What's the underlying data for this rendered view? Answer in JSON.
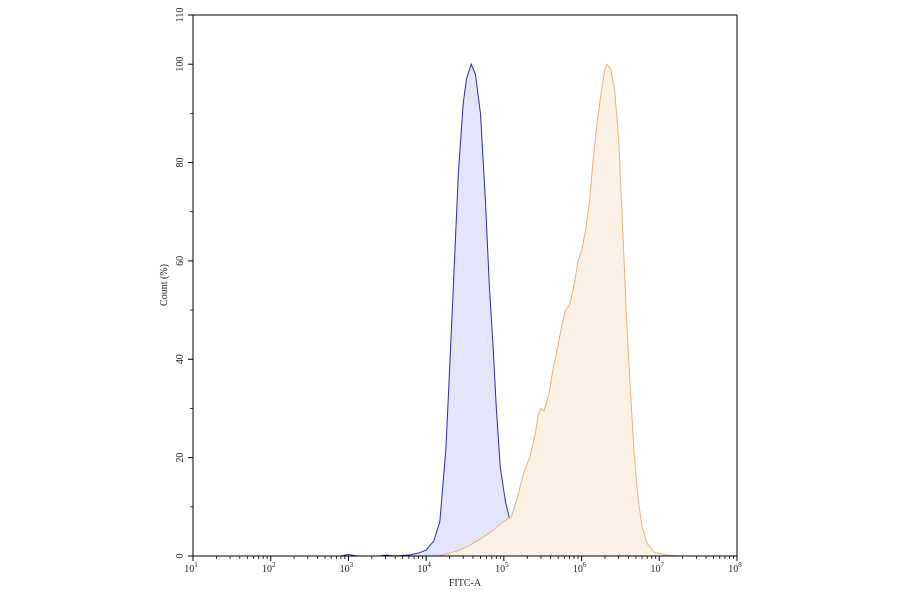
{
  "chart_data": {
    "type": "area",
    "xlabel": "FITC-A",
    "ylabel": "Count (%)",
    "xscale": "log",
    "xlim": [
      10,
      100000000
    ],
    "ylim": [
      0,
      110
    ],
    "x_ticks": [
      {
        "value": 10,
        "base": "10",
        "exp": "1"
      },
      {
        "value": 100,
        "base": "10",
        "exp": "2"
      },
      {
        "value": 1000,
        "base": "10",
        "exp": "3"
      },
      {
        "value": 10000,
        "base": "10",
        "exp": "4"
      },
      {
        "value": 100000,
        "base": "10",
        "exp": "5"
      },
      {
        "value": 1000000,
        "base": "10",
        "exp": "6"
      },
      {
        "value": 10000000,
        "base": "10",
        "exp": "7"
      },
      {
        "value": 100000000,
        "base": "10",
        "exp": "8"
      }
    ],
    "y_ticks": [
      0,
      20,
      40,
      60,
      80,
      100,
      110
    ],
    "grid": false,
    "legend": "none",
    "series": [
      {
        "stroke": "#2b2ba8",
        "fill": "#e4e5fb",
        "points": [
          [
            800,
            0
          ],
          [
            1000,
            0.3
          ],
          [
            1300,
            0
          ],
          [
            2500,
            0
          ],
          [
            3000,
            0.2
          ],
          [
            4000,
            0
          ],
          [
            6000,
            0.2
          ],
          [
            8000,
            0.6
          ],
          [
            10000,
            1.2
          ],
          [
            11000,
            2
          ],
          [
            12500,
            3
          ],
          [
            15000,
            7
          ],
          [
            18000,
            22
          ],
          [
            22000,
            52
          ],
          [
            26000,
            78
          ],
          [
            30000,
            92
          ],
          [
            33000,
            97
          ],
          [
            38000,
            100
          ],
          [
            43000,
            98
          ],
          [
            50000,
            90
          ],
          [
            58000,
            72
          ],
          [
            65000,
            55
          ],
          [
            73000,
            42
          ],
          [
            80000,
            30
          ],
          [
            90000,
            18
          ],
          [
            105000,
            11
          ],
          [
            125000,
            6
          ],
          [
            150000,
            3
          ],
          [
            190000,
            1.5
          ],
          [
            250000,
            0.7
          ],
          [
            350000,
            0.3
          ],
          [
            500000,
            0
          ]
        ]
      },
      {
        "stroke": "#e8b07e",
        "fill": "#fdf1e6",
        "points": [
          [
            14000,
            0
          ],
          [
            18000,
            0.4
          ],
          [
            25000,
            1
          ],
          [
            35000,
            2
          ],
          [
            50000,
            3.5
          ],
          [
            70000,
            5
          ],
          [
            90000,
            6.5
          ],
          [
            110000,
            7.5
          ],
          [
            125000,
            8
          ],
          [
            150000,
            12
          ],
          [
            180000,
            17
          ],
          [
            215000,
            20
          ],
          [
            255000,
            25
          ],
          [
            280000,
            29
          ],
          [
            300000,
            30
          ],
          [
            330000,
            29.5
          ],
          [
            380000,
            33
          ],
          [
            430000,
            38
          ],
          [
            500000,
            43
          ],
          [
            560000,
            47
          ],
          [
            620000,
            50
          ],
          [
            700000,
            51
          ],
          [
            800000,
            55
          ],
          [
            900000,
            60
          ],
          [
            1000000,
            62
          ],
          [
            1120000,
            66
          ],
          [
            1260000,
            72
          ],
          [
            1400000,
            80
          ],
          [
            1580000,
            88
          ],
          [
            1780000,
            94
          ],
          [
            1990000,
            99
          ],
          [
            2130000,
            100
          ],
          [
            2370000,
            99
          ],
          [
            2650000,
            95
          ],
          [
            3000000,
            85
          ],
          [
            3350000,
            68
          ],
          [
            3750000,
            50
          ],
          [
            4200000,
            35
          ],
          [
            4700000,
            22
          ],
          [
            5300000,
            12
          ],
          [
            6000000,
            6
          ],
          [
            7000000,
            2.5
          ],
          [
            8500000,
            0.8
          ],
          [
            12000000,
            0.2
          ],
          [
            20000000,
            0
          ]
        ]
      }
    ]
  }
}
